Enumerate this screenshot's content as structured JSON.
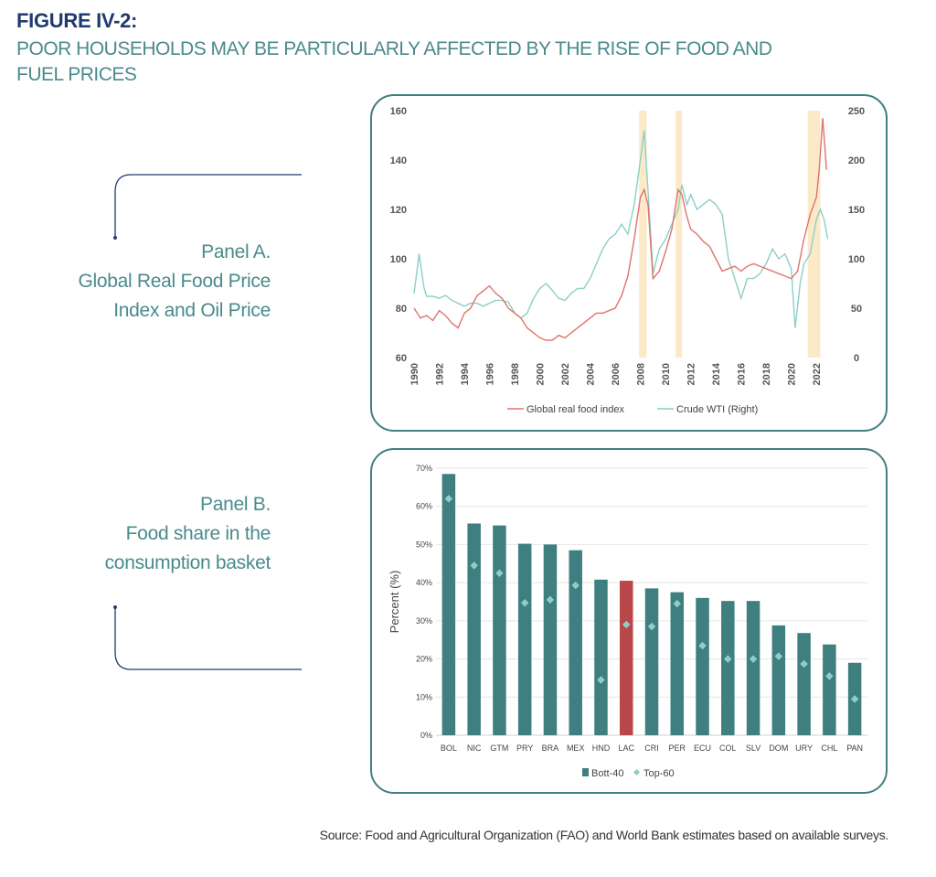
{
  "figure": {
    "label": "FIGURE IV-2:",
    "title_line1": "POOR HOUSEHOLDS MAY BE PARTICULARLY AFFECTED BY THE RISE OF FOOD AND",
    "title_line2": "FUEL PRICES"
  },
  "panel_a": {
    "label_line1": "Panel A.",
    "label_line2": "Global Real Food Price",
    "label_line3": "Index and Oil Price"
  },
  "panel_b": {
    "label_line1": "Panel B.",
    "label_line2": "Food share in the",
    "label_line3": "consumption basket"
  },
  "source": "Source: Food and Agricultural Organization (FAO) and World Bank estimates based on available surveys.",
  "colors": {
    "food": "#e0736a",
    "oil": "#8ccfc7",
    "shade": "#fbe9c8",
    "bar": "#3f7f80",
    "bar_highlight": "#b9474a",
    "marker": "#8ccfc7",
    "frame": "#3f7f80",
    "title": "#4b8a8c",
    "label": "#1f3a6e"
  },
  "chart_data": [
    {
      "type": "line",
      "title": "Global Real Food Price Index and Oil Price",
      "xlabel": "",
      "ylabel": "",
      "xlim": [
        1990,
        2023
      ],
      "ylim": [
        60,
        160
      ],
      "y2lim": [
        0,
        250
      ],
      "x_tick_labels": [
        "1990",
        "1992",
        "1994",
        "1996",
        "1998",
        "2000",
        "2002",
        "2004",
        "2006",
        "2008",
        "2010",
        "2012",
        "2014",
        "2016",
        "2018",
        "2020",
        "2022"
      ],
      "y_tick_labels": [
        "60",
        "80",
        "100",
        "120",
        "140",
        "160"
      ],
      "y2_tick_labels": [
        "0",
        "50",
        "100",
        "150",
        "200",
        "250"
      ],
      "shaded_periods": [
        [
          2007.9,
          2008.5
        ],
        [
          2010.8,
          2011.3
        ],
        [
          2021.3,
          2022.3
        ]
      ],
      "series": [
        {
          "name": "Global real food index",
          "axis": "left",
          "x": [
            1990,
            1990.5,
            1991,
            1991.5,
            1992,
            1992.5,
            1993,
            1993.5,
            1994,
            1994.5,
            1995,
            1995.5,
            1996,
            1996.5,
            1997,
            1997.5,
            1998,
            1998.5,
            1999,
            1999.5,
            2000,
            2000.5,
            2001,
            2001.5,
            2002,
            2002.5,
            2003,
            2003.5,
            2004,
            2004.5,
            2005,
            2005.5,
            2006,
            2006.5,
            2007,
            2007.5,
            2008,
            2008.3,
            2008.6,
            2009,
            2009.5,
            2010,
            2010.5,
            2011,
            2011.3,
            2011.7,
            2012,
            2012.5,
            2013,
            2013.5,
            2014,
            2014.5,
            2015,
            2015.5,
            2016,
            2016.5,
            2017,
            2017.5,
            2018,
            2018.5,
            2019,
            2019.5,
            2020,
            2020.5,
            2021,
            2021.5,
            2022,
            2022.2,
            2022.5,
            2022.8
          ],
          "values": [
            80,
            76,
            77,
            75,
            79,
            77,
            74,
            72,
            78,
            80,
            85,
            87,
            89,
            86,
            84,
            80,
            78,
            76,
            72,
            70,
            68,
            67,
            67,
            69,
            68,
            70,
            72,
            74,
            76,
            78,
            78,
            79,
            80,
            85,
            93,
            108,
            125,
            128,
            122,
            92,
            95,
            103,
            112,
            128,
            126,
            117,
            112,
            110,
            107,
            105,
            100,
            95,
            96,
            97,
            95,
            97,
            98,
            97,
            96,
            95,
            94,
            93,
            92,
            95,
            108,
            118,
            125,
            135,
            157,
            136
          ],
          "values_range": "approx. monthly trend"
        },
        {
          "name": "Crude WTI (Right)",
          "axis": "right",
          "x": [
            1990,
            1990.4,
            1990.8,
            1991,
            1991.5,
            1992,
            1992.5,
            1993,
            1993.5,
            1994,
            1994.5,
            1995,
            1995.5,
            1996,
            1996.5,
            1997,
            1997.5,
            1998,
            1998.5,
            1999,
            1999.5,
            2000,
            2000.5,
            2001,
            2001.5,
            2002,
            2002.5,
            2003,
            2003.5,
            2004,
            2004.5,
            2005,
            2005.5,
            2006,
            2006.5,
            2007,
            2007.5,
            2008,
            2008.3,
            2008.6,
            2009,
            2009.5,
            2010,
            2010.5,
            2011,
            2011.3,
            2011.7,
            2012,
            2012.5,
            2013,
            2013.5,
            2014,
            2014.5,
            2015,
            2015.5,
            2016,
            2016.5,
            2017,
            2017.5,
            2018,
            2018.5,
            2019,
            2019.5,
            2020,
            2020.3,
            2020.7,
            2021,
            2021.5,
            2022,
            2022.3,
            2022.6,
            2022.9
          ],
          "values": [
            65,
            105,
            70,
            62,
            62,
            60,
            63,
            58,
            55,
            52,
            55,
            55,
            52,
            55,
            58,
            58,
            56,
            45,
            40,
            45,
            60,
            70,
            75,
            68,
            60,
            58,
            65,
            70,
            70,
            80,
            95,
            110,
            120,
            125,
            135,
            125,
            155,
            200,
            230,
            170,
            85,
            110,
            120,
            135,
            150,
            175,
            155,
            165,
            150,
            155,
            160,
            155,
            145,
            100,
            80,
            60,
            80,
            80,
            85,
            95,
            110,
            100,
            105,
            90,
            30,
            75,
            95,
            105,
            140,
            150,
            140,
            120
          ]
        }
      ],
      "legend": [
        "Global real food index",
        "Crude WTI (Right)"
      ],
      "legend_position": "bottom"
    },
    {
      "type": "bar",
      "title": "Food share in the consumption basket",
      "xlabel": "",
      "ylabel": "Percent (%)",
      "ylim": [
        0,
        70
      ],
      "y_tick_labels": [
        "0%",
        "10%",
        "20%",
        "30%",
        "40%",
        "50%",
        "60%",
        "70%"
      ],
      "categories": [
        "BOL",
        "NIC",
        "GTM",
        "PRY",
        "BRA",
        "MEX",
        "HND",
        "LAC",
        "CRI",
        "PER",
        "ECU",
        "COL",
        "SLV",
        "DOM",
        "URY",
        "CHL",
        "PAN"
      ],
      "highlight": "LAC",
      "series": [
        {
          "name": "Bott-40",
          "values": [
            68.5,
            55.5,
            55.0,
            50.2,
            50.0,
            48.5,
            40.8,
            40.5,
            38.5,
            37.5,
            36.0,
            35.2,
            35.2,
            28.8,
            26.8,
            23.8,
            19.0
          ]
        },
        {
          "name": "Top-60",
          "values": [
            62.0,
            44.5,
            42.5,
            34.7,
            35.5,
            39.3,
            14.5,
            29.0,
            28.5,
            34.5,
            23.5,
            20.0,
            20.0,
            20.7,
            18.7,
            15.5,
            9.5
          ]
        }
      ],
      "legend": [
        "Bott-40",
        "Top-60"
      ],
      "legend_position": "bottom"
    }
  ]
}
